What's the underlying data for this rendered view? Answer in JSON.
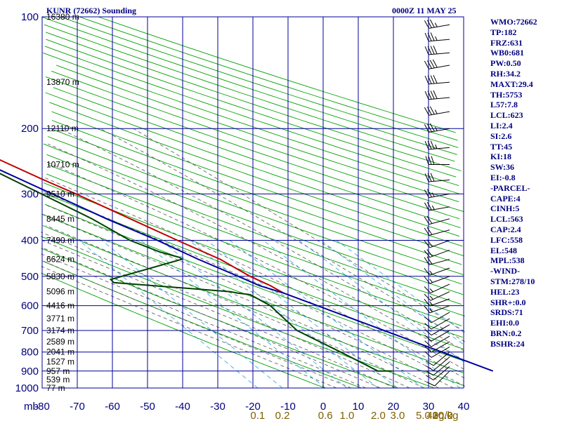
{
  "header": {
    "station": "KUNR (72662) Sounding",
    "time": "0000Z 11 MAY 25"
  },
  "indices": [
    "WMO:72662",
    "TP:182",
    "FRZ:631",
    "WB0:681",
    "PW:0.50",
    "RH:34.2",
    "MAXT:29.4",
    "TH:5753",
    "L57:7.8",
    "LCL:623",
    "LI:2.4",
    "SI:2.6",
    "TT:45",
    "KI:18",
    "SW:36",
    "EI:-0.8",
    "-PARCEL-",
    "CAPE:4",
    "CINH:5",
    "LCL:563",
    "CAP:2.4",
    "LFC:558",
    "EL:548",
    "MPL:538",
    "-WIND-",
    "STM:278/10",
    "HEL:23",
    "SHR+:0.0",
    "SRDS:71",
    "EHI:0.0",
    "BRN:0.2",
    "BSHR:24"
  ],
  "chart_data": {
    "type": "skew-t log-p",
    "xlabel": "",
    "ylabel": "mb",
    "pressure_ticks": [
      100,
      200,
      300,
      400,
      500,
      600,
      700,
      800,
      900,
      1000
    ],
    "temperature_ticks": [
      -80,
      -70,
      -60,
      -50,
      -40,
      -30,
      -20,
      -10,
      0,
      10,
      20,
      30,
      40
    ],
    "temperature_tick_labels": [
      "-80",
      "-70",
      "-60",
      "-50",
      "-40",
      "-30",
      "-20",
      "-10",
      "0",
      "10",
      "20",
      "30",
      "40"
    ],
    "mixing_ratio_labels": [
      "0.1",
      "0.2",
      "0.6",
      "1.0",
      "2.0",
      "3.0",
      "5.0",
      "10.0",
      "20.0",
      "30.0",
      "40g/kg"
    ],
    "ylim": [
      1000,
      100
    ],
    "xlim": [
      -80,
      40
    ],
    "height_labels": [
      {
        "p": 100,
        "text": "16380 m"
      },
      {
        "p": 150,
        "text": "13870 m"
      },
      {
        "p": 200,
        "text": "12110 m"
      },
      {
        "p": 250,
        "text": "10710 m"
      },
      {
        "p": 300,
        "text": "9510 m"
      },
      {
        "p": 350,
        "text": "8445 m"
      },
      {
        "p": 400,
        "text": "7490 m"
      },
      {
        "p": 450,
        "text": "6624 m"
      },
      {
        "p": 500,
        "text": "5830 m"
      },
      {
        "p": 550,
        "text": "5096 m"
      },
      {
        "p": 600,
        "text": "4416 m"
      },
      {
        "p": 650,
        "text": "3771 m"
      },
      {
        "p": 700,
        "text": "3174 m"
      },
      {
        "p": 750,
        "text": "2589 m"
      },
      {
        "p": 800,
        "text": "2041 m"
      },
      {
        "p": 850,
        "text": "1527 m"
      },
      {
        "p": 900,
        "text": "957 m"
      },
      {
        "p": 950,
        "text": "539 m"
      },
      {
        "p": 1000,
        "text": "77 m"
      }
    ],
    "series": [
      {
        "name": "",
        "role": "temperature",
        "color": "#c00000",
        "points": [
          [
            100,
            -60
          ],
          [
            110,
            -60.5
          ],
          [
            121,
            -58
          ],
          [
            131,
            -57
          ],
          [
            150,
            -56
          ],
          [
            170,
            -60
          ],
          [
            181,
            -63
          ],
          [
            190,
            -62
          ],
          [
            200,
            -60
          ],
          [
            225,
            -53.5
          ],
          [
            250,
            -48
          ],
          [
            275,
            -43
          ],
          [
            300,
            -38
          ],
          [
            350,
            -30
          ],
          [
            400,
            -23
          ],
          [
            450,
            -16.5
          ],
          [
            500,
            -13
          ],
          [
            530,
            -10
          ],
          [
            555,
            -8.4
          ]
        ]
      },
      {
        "name": "",
        "role": "dewpoint",
        "color": "#004000",
        "points": [
          [
            100,
            -74
          ],
          [
            105,
            -74
          ],
          [
            115,
            -70.5
          ],
          [
            130,
            -67
          ],
          [
            160,
            -65
          ],
          [
            181,
            -67
          ],
          [
            200,
            -66
          ],
          [
            230,
            -61.5
          ],
          [
            260,
            -54
          ],
          [
            300,
            -47.5
          ],
          [
            350,
            -40.5
          ],
          [
            400,
            -36
          ],
          [
            430,
            -31
          ],
          [
            445,
            -27
          ],
          [
            450,
            -27
          ],
          [
            510,
            -52
          ],
          [
            520,
            -52
          ],
          [
            550,
            -22.5
          ],
          [
            555,
            -21
          ],
          [
            560,
            -18
          ],
          [
            600,
            -15.5
          ],
          [
            700,
            -15
          ],
          [
            800,
            -9
          ],
          [
            900,
            -4
          ],
          [
            900,
            0
          ]
        ]
      },
      {
        "name": "",
        "role": "parcel",
        "color": "#0000a0",
        "points": [
          [
            900,
            27.5
          ],
          [
            555,
            -8.4
          ],
          [
            530,
            -13
          ],
          [
            500,
            -16.2
          ],
          [
            450,
            -22.5
          ],
          [
            400,
            -28.5
          ],
          [
            350,
            -36.5
          ],
          [
            300,
            -44.5
          ],
          [
            250,
            -54
          ],
          [
            200,
            -65
          ],
          [
            170,
            -73.5
          ],
          [
            160,
            -76
          ],
          [
            153,
            -80
          ]
        ]
      }
    ],
    "wind_barbs": [
      [
        105,
        260,
        35
      ],
      [
        115,
        265,
        35
      ],
      [
        125,
        265,
        40
      ],
      [
        135,
        260,
        40
      ],
      [
        150,
        265,
        40
      ],
      [
        165,
        265,
        40
      ],
      [
        180,
        260,
        35
      ],
      [
        200,
        260,
        35
      ],
      [
        225,
        265,
        35
      ],
      [
        250,
        270,
        30
      ],
      [
        275,
        265,
        30
      ],
      [
        300,
        260,
        25
      ],
      [
        325,
        260,
        25
      ],
      [
        350,
        255,
        20
      ],
      [
        375,
        255,
        20
      ],
      [
        400,
        250,
        20
      ],
      [
        425,
        250,
        20
      ],
      [
        450,
        255,
        20
      ],
      [
        475,
        250,
        15
      ],
      [
        500,
        250,
        15
      ],
      [
        525,
        245,
        15
      ],
      [
        550,
        245,
        15
      ],
      [
        575,
        250,
        15
      ],
      [
        600,
        250,
        15
      ],
      [
        625,
        240,
        10
      ],
      [
        650,
        240,
        10
      ],
      [
        675,
        240,
        10
      ],
      [
        700,
        240,
        10
      ],
      [
        725,
        240,
        10
      ],
      [
        750,
        240,
        10
      ],
      [
        775,
        240,
        10
      ],
      [
        800,
        230,
        10
      ],
      [
        825,
        230,
        10
      ],
      [
        850,
        230,
        10
      ],
      [
        875,
        230,
        10
      ],
      [
        900,
        225,
        10
      ]
    ],
    "grid": true,
    "colors": {
      "isobar_isotherm": "#000099",
      "dry_adiabat": "#00a000",
      "moist_adiabat": "#555555",
      "mixing_ratio": "#20a0e0",
      "axis_label": "#000080",
      "mixing_ratio_label": "#806000"
    }
  }
}
